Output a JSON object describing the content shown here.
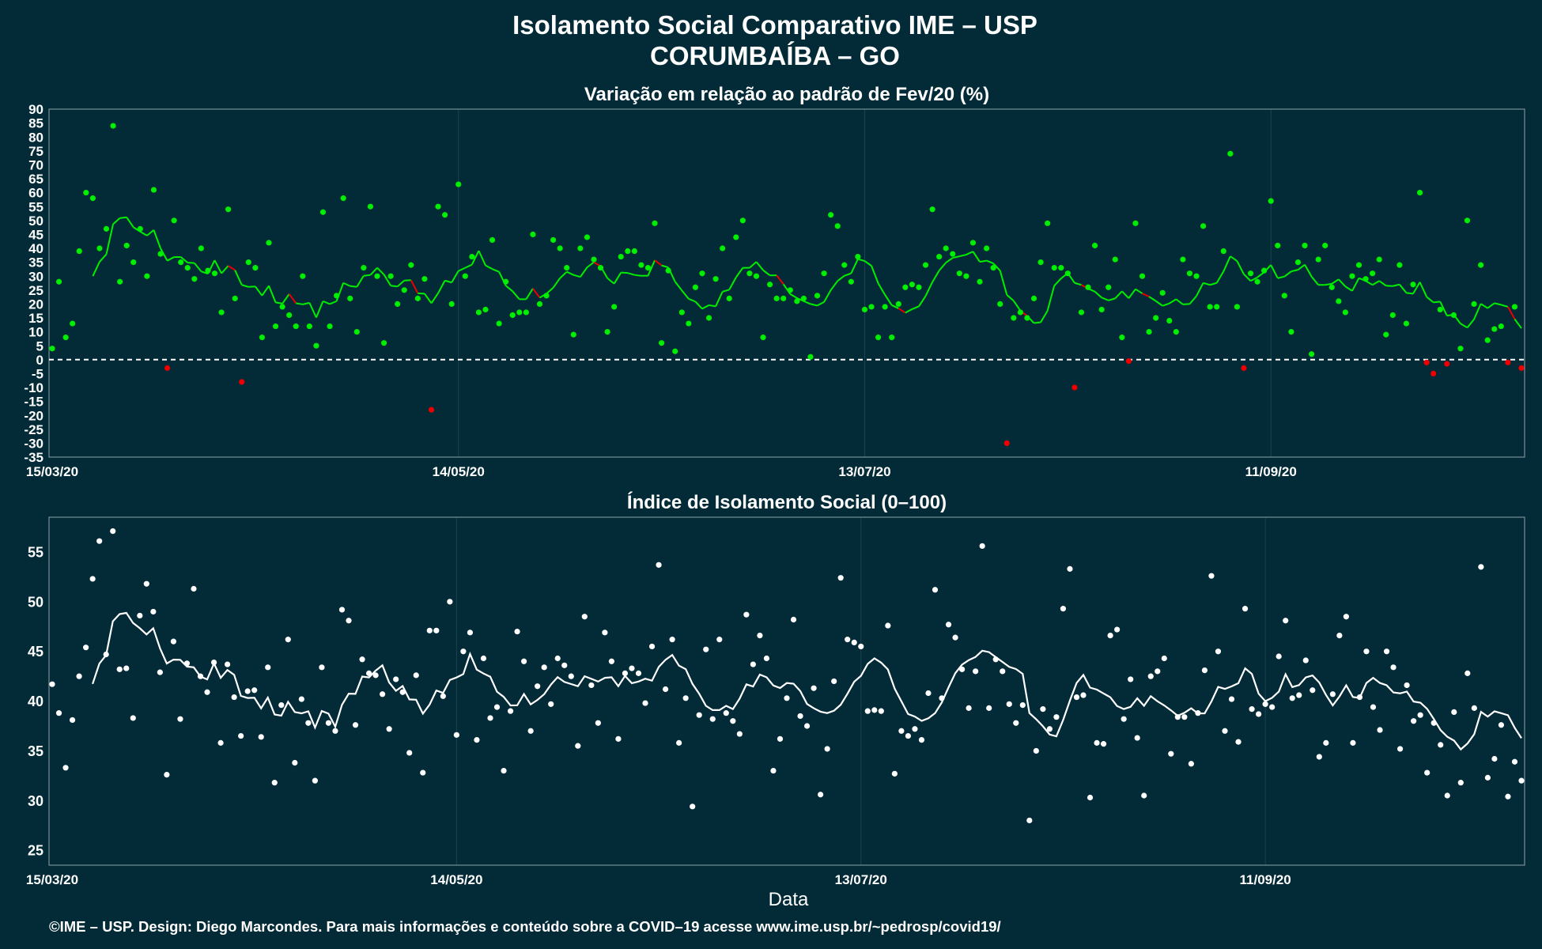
{
  "title_line1": "Isolamento Social Comparativo IME – USP",
  "title_line2": "CORUMBAÍBA – GO",
  "xlabel": "Data",
  "footer": "©IME – USP. Design: Diego Marcondes. Para mais informações e conteúdo sobre a COVID–19 acesse www.ime.usp.br/~pedrosp/covid19/",
  "colors": {
    "background": "#022a37",
    "positive": "#00ee00",
    "negative": "#ee0000",
    "index": "#ffffff",
    "grid": "#1c4350",
    "frame": "#7a8f96",
    "text": "#ffffff"
  },
  "chart_data": [
    {
      "type": "scatter",
      "title": "Variação em relação ao padrão de Fev/20 (%)",
      "x_start": "15/03/20",
      "x_end": "26/10/20",
      "x_tick_labels": [
        "15/03/20",
        "14/05/20",
        "13/07/20",
        "11/09/20"
      ],
      "x_tick_days": [
        0,
        60,
        120,
        180
      ],
      "ylim": [
        -35,
        90
      ],
      "y_ticks": [
        -35,
        -30,
        -25,
        -20,
        -15,
        -10,
        -5,
        0,
        5,
        10,
        15,
        20,
        25,
        30,
        35,
        40,
        45,
        50,
        55,
        60,
        65,
        70,
        75,
        80,
        85,
        90
      ],
      "reference_line": 0,
      "grid": true,
      "series": [
        {
          "kind": "points",
          "values": [
            4,
            28,
            8,
            13,
            39,
            60,
            58,
            40,
            47,
            84,
            28,
            41,
            35,
            47,
            30,
            61,
            38,
            -3,
            50,
            35,
            33,
            29,
            40,
            32,
            31,
            17,
            54,
            22,
            -8,
            35,
            33,
            8,
            42,
            12,
            19,
            16,
            12,
            30,
            12,
            5,
            53,
            12,
            23,
            58,
            22,
            10,
            33,
            55,
            30,
            6,
            30,
            20,
            25,
            34,
            22,
            29,
            -18,
            55,
            52,
            20,
            63,
            30,
            37,
            17,
            18,
            43,
            13,
            28,
            16,
            17,
            17,
            45,
            20,
            23,
            43,
            40,
            33,
            9,
            40,
            44,
            36,
            33,
            10,
            19,
            37,
            39,
            39,
            34,
            33,
            49,
            6,
            32,
            3,
            17,
            13,
            26,
            31,
            15,
            29,
            40,
            22,
            44,
            50,
            31,
            30,
            8,
            27,
            22,
            22,
            25,
            21,
            22,
            1,
            23,
            31,
            52,
            48,
            34,
            28,
            37,
            18,
            19,
            8,
            19,
            8,
            20,
            26,
            27,
            26,
            34,
            54,
            37,
            40,
            38,
            31,
            30,
            42,
            28,
            40,
            33,
            20,
            -30,
            15,
            17,
            15,
            22,
            35,
            49,
            33,
            33,
            31,
            -10,
            17,
            26,
            41,
            18,
            26,
            36,
            8,
            -0.5,
            49,
            30,
            10,
            15,
            24,
            14,
            10,
            36,
            31,
            30,
            48,
            19,
            19,
            39,
            74,
            19,
            -3,
            31,
            28,
            32,
            57,
            41,
            23,
            10,
            35,
            41,
            2,
            36,
            41,
            26,
            21,
            17,
            30,
            34,
            29,
            31,
            36,
            9,
            16,
            34,
            13,
            27,
            60,
            -1,
            -5,
            18,
            -1.5,
            16,
            4,
            50,
            20,
            34,
            7,
            11,
            12,
            -1,
            19,
            -3
          ],
          "negative_color": "#ee0000",
          "positive_color": "#00ee00"
        },
        {
          "kind": "moving_average",
          "window": 7
        }
      ]
    },
    {
      "type": "scatter",
      "title": "Índice de Isolamento Social (0–100)",
      "x_start": "15/03/20",
      "x_end": "26/10/20",
      "x_tick_labels": [
        "15/03/20",
        "14/05/20",
        "13/07/20",
        "11/09/20"
      ],
      "x_tick_days": [
        0,
        60,
        120,
        180
      ],
      "ylim": [
        23.5,
        58.5
      ],
      "y_ticks": [
        25,
        30,
        35,
        40,
        45,
        50,
        55
      ],
      "grid": true,
      "series": [
        {
          "kind": "points",
          "values": [
            41.7,
            38.8,
            33.3,
            38.1,
            42.5,
            45.4,
            52.3,
            56.1,
            44.7,
            57.1,
            43.2,
            43.3,
            38.3,
            48.6,
            51.8,
            49.0,
            42.9,
            32.6,
            46.0,
            38.2,
            43.8,
            51.3,
            42.5,
            40.9,
            43.9,
            35.8,
            43.7,
            40.4,
            36.5,
            41.0,
            41.1,
            36.4,
            43.4,
            31.8,
            39.6,
            46.2,
            33.8,
            40.2,
            37.8,
            32.0,
            43.4,
            37.8,
            37.0,
            49.2,
            48.1,
            37.6,
            44.2,
            42.8,
            42.6,
            40.7,
            37.2,
            42.2,
            40.9,
            34.8,
            42.6,
            32.8,
            47.1,
            47.1,
            40.5,
            50.0,
            36.6,
            45.0,
            46.9,
            36.1,
            44.3,
            38.3,
            39.4,
            33.0,
            39.0,
            47.0,
            44.0,
            37.0,
            41.5,
            43.4,
            39.7,
            44.3,
            43.6,
            42.5,
            35.5,
            48.5,
            41.6,
            37.8,
            46.9,
            44.0,
            36.2,
            42.8,
            43.3,
            42.8,
            39.8,
            45.5,
            53.7,
            41.2,
            46.2,
            35.8,
            40.3,
            29.4,
            38.6,
            45.2,
            38.2,
            46.2,
            38.8,
            38.0,
            36.7,
            48.7,
            43.7,
            46.6,
            44.3,
            33.0,
            36.2,
            40.3,
            48.2,
            38.5,
            37.5,
            41.3,
            30.6,
            35.2,
            42.0,
            52.4,
            46.2,
            45.9,
            45.5,
            39.0,
            39.1,
            39.0,
            47.6,
            32.7,
            37.0,
            36.5,
            37.2,
            36.1,
            40.8,
            51.2,
            40.3,
            47.7,
            46.4,
            43.2,
            39.3,
            43.0,
            55.6,
            39.3,
            44.2,
            43.0,
            39.7,
            37.8,
            39.6,
            28.0,
            35.0,
            39.2,
            37.2,
            38.4,
            49.3,
            53.3,
            40.4,
            40.6,
            30.3,
            35.8,
            35.7,
            46.6,
            47.2,
            38.2,
            42.2,
            36.3,
            30.5,
            42.5,
            43.0,
            44.3,
            34.7,
            38.4,
            38.4,
            33.7,
            38.8,
            43.1,
            52.6,
            45.0,
            37.0,
            40.2,
            35.9,
            49.3,
            39.2,
            38.7,
            39.7,
            39.4,
            44.5,
            48.1,
            40.3,
            40.6,
            44.1,
            41.1,
            34.4,
            35.8,
            40.7,
            46.6,
            48.5,
            35.8,
            40.4,
            45.0,
            39.4,
            37.1,
            45.0,
            43.4,
            35.2,
            41.6,
            38.0,
            38.6,
            32.8,
            37.8,
            35.6,
            30.5,
            38.9,
            31.8,
            42.8,
            39.3,
            53.5,
            32.3,
            34.2,
            37.6,
            30.4,
            33.9,
            32.0
          ],
          "color": "#ffffff"
        },
        {
          "kind": "moving_average",
          "window": 7,
          "color": "#ffffff"
        }
      ]
    }
  ]
}
